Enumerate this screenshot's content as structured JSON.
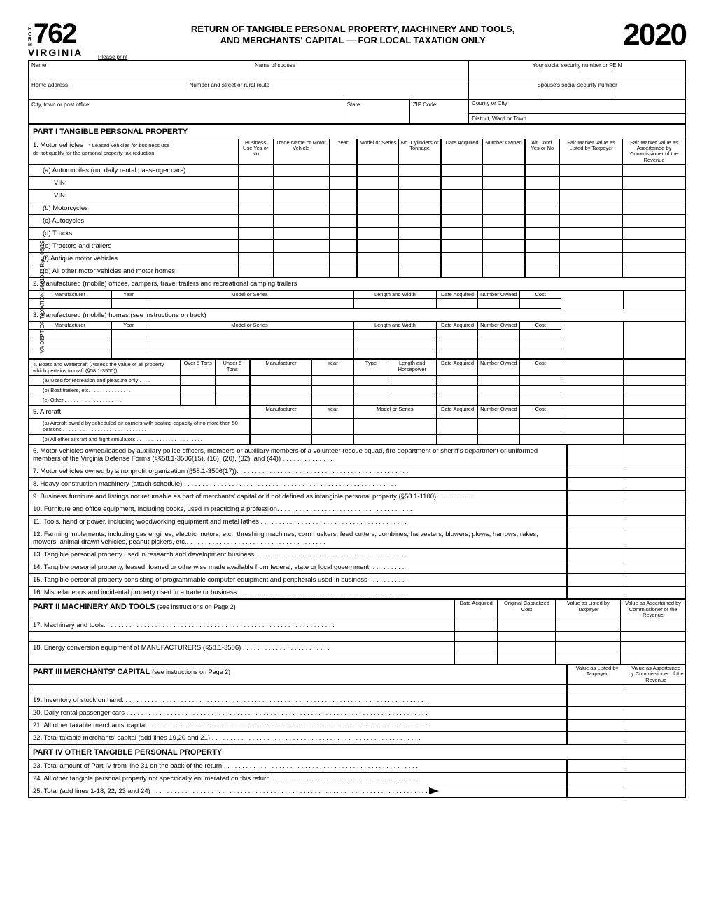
{
  "header": {
    "form_label": "FORM",
    "form_number": "762",
    "state": "VIRGINIA",
    "title_line1": "RETURN OF TANGIBLE PERSONAL PROPERTY, MACHINERY AND TOOLS,",
    "title_line2": "AND MERCHANTS' CAPITAL — FOR LOCAL TAXATION ONLY",
    "year": "2020",
    "please_print": "Please print"
  },
  "id_block": {
    "name": "Name",
    "spouse_name": "Name of spouse",
    "ssn": "Your social security number or FEIN",
    "spouse_ssn": "Spouse's social security number",
    "home_addr": "Home address",
    "street": "Number and street or rural route",
    "county": "County or City",
    "city": "City, town or post office",
    "state_lbl": "State",
    "zip": "ZIP Code",
    "district": "District, Ward or Town"
  },
  "part1": {
    "title": "PART I   TANGIBLE PERSONAL PROPERTY",
    "line1": "1. Motor vehicles",
    "line1_note1": "* Leased  vehicles for business use",
    "line1_note2": "do not qualify for the personal property tax reduction.",
    "cols": {
      "biz": "Business Use Yes or No",
      "trade": "Trade Name or Motor Vehicle",
      "year": "Year",
      "model": "Model or Series",
      "cyl": "No. Cylinders or Tonnage",
      "date": "Date Acquired",
      "num": "Number Owned",
      "ac": "Air Cond. Yes or No",
      "fmv1": "Fair Market Value as Listed by Taxpayer",
      "fmv2": "Fair Market Value as Ascertained by Commissioner of the Revenue"
    },
    "rows": {
      "a": "(a) Automobiles (not daily rental passenger cars)",
      "vin": "VIN:",
      "b": "(b) Motorcycles",
      "c": "(c) Autocycles",
      "d": "(d) Trucks",
      "e": "(e) Tractors and trailers",
      "f": "(f)  Antique motor vehicles",
      "g": "(g) All other motor vehicles and motor homes"
    },
    "line2": "2. Manufactured (mobile) offices, campers, travel trailers and recreational camping trailers",
    "sub_cols": {
      "mfr": "Manufacturer",
      "yr": "Year",
      "model": "Model or Series",
      "lw": "Length and Width",
      "date": "Date Acquired",
      "num": "Number Owned",
      "cost": "Cost"
    },
    "line3": "3. Manufactured (mobile) homes (see instructions on back)",
    "line4": {
      "label": "4.",
      "text": "Boats and Watercraft (Assess the value of all property which pertains to craft (§58.1-3500))",
      "over": "Over 5 Tons",
      "under": "Under 5 Tons",
      "mfr": "Manufacturer",
      "yr": "Year",
      "type": "Type",
      "hp": "Length and Horsepower",
      "date": "Date Acquired",
      "num": "Number Owned",
      "cost": "Cost",
      "a": "(a)   Used for recreation and pleasure only  .  .  .  .",
      "b": "(b)   Boat trailers, etc.   .  .  .  .  .  .  .  .  .  .  .  .  .  .",
      "c": "(c)   Other  .  .  .  .  .  .  .  .  .  .  .  .  .  .  .  .  .  .  .  ."
    },
    "line5": {
      "label": "5. Aircraft",
      "mfr": "Manufacturer",
      "yr": "Year",
      "model": "Model or Series",
      "date": "Date Acquired",
      "num": "Number Owned",
      "cost": "Cost",
      "a": "(a)    Aircraft owned by scheduled air carriers with seating capacity of no more than 50 persons . . . . . . . . . . . . . . . . . . . . . . . . . . . . .",
      "b": "(b)   All other aircraft and flight simulators . . . . . . . . . . . . . . . . . . . . . . ."
    },
    "lines6_16": [
      "6. Motor vehicles owned/leased by auxiliary police officers, members or auxiliary members of a volunteer rescue squad, fire department or sheriff's department or uniformed members of the Virginia Defense Forms (§§58.1-3506(15), (16), (20), (32), and (44))   .  .  .  .  .  .  .  .  .  .  .  .  .  .",
      "7. Motor vehicles owned by a nonprofit organization (§58.1-3506(17)). . . . . . . . . . . . . . . . . . . . . . . . . . . . . . . . . . . . . . . . . . . . . . .",
      "8. Heavy construction machinery (attach schedule)  . . . . . . . . . . . . . . . . . . . . . . . . . . . . . . . . . . . . . . . . . . . . . . . . . . . . . . . . . .",
      "9. Business furniture and listings not returnable as part of merchants' capital or if not defined as intangible personal property (§58.1-1100).  . . . . . . . . . .",
      "10. Furniture and office equipment, including books, used in practicing a profession. . . . . . . . . . . . . . . . . . . . . . . . . . . . . . . . . . . . .",
      "11. Tools, hand or power, including woodworking equipment and metal lathes  . . . . . . . . . . . . . . . . . . . . . . . . . . . . . . . . . . . . . . . .",
      "12. Farming implements, including gas engines, electric motors, etc., threshing machines, corn huskers, feed cutters, combines, harvesters, blowers, plows, harrows, rakes, mowers, animal drawn vehicles, peanut pickers, etc.. . . . . . . . . . . . . . . . . . . . . . . . . . . . . . . . . . . . . .",
      "13. Tangible personal property used in research and development business . . . . . . . . . . . . . . . . . . . . . . . . . . . . . . . . . . . . . . . . .",
      "14. Tangible personal property, leased, loaned or otherwise made available from federal, state or local government. . . . . . . . . . .",
      "15. Tangible personal property consisting of programmable computer equipment and peripherals used in business . . . . . . . . . . .",
      "16. Miscellaneous and incidental property used in a trade or business  . . . . . . . . . . . . . . . . . . . . . . . . . . . . . . . . . . . . . . . . . . . . . ."
    ]
  },
  "part2": {
    "title": "PART II   MACHINERY AND TOOLS",
    "note": "(see instructions on Page 2)",
    "cols": {
      "date": "Date Acquired",
      "orig": "Original Capitalized Cost",
      "val1": "Value as Listed by Taxpayer",
      "val2": "Value as Ascertained by Commissioner of the Revenue"
    },
    "l17": "17. Machinery and tools. . . . . . . . . . . . . . . . . . . . . . . . . . . . . . . . . . . . . . . . . . . . . . . . . . . . . . . . . . . . . . .",
    "l18": "18. Energy conversion equipment of MANUFACTURERS (§58.1-3506)  . . . . . . . . . . . . . . . . . . . . . . . ."
  },
  "part3": {
    "title": "PART III   MERCHANTS' CAPITAL",
    "note": "(see instructions on Page 2)",
    "cols": {
      "val1": "Value as Listed by Taxpayer",
      "val2": "Value as Ascertained by Commissioner of the Revenue"
    },
    "l19": "19. Inventory of stock on hand. . . . . . . . . . . . . . . . . . . . . . . . . . . . . . . . . . . . . . . . . . . . . . . . . . . . . . . . . . . . . . . . . . . . . . . . . . . . . . . . . . .",
    "l20": "20. Daily rental passenger cars . . . . . . . . . . . . . . . . . . . . . . . . . . . . . . . . . . . . . . . . . . . . . . . . . . . . . . . . . . . . . . . . . . . . . . . . . . . . . . . . . .",
    "l21": "21. All other taxable merchants' capital . . . . . . . . . . . . . . . . . . . . . . . . . . . . . . . . . . . . . . . . . . . . . . . . . . . . . . . . . . . . . . . . . . . . . . . . . . . .",
    "l22": "22. Total taxable merchants' capital  (add lines 19,20 and 21)  . . . . . . . . . . . . . . . . . . . . . . . . . . . . . . . . . . . . . . . . . . . . . . . . . . . . . . . . ."
  },
  "part4": {
    "title": "PART IV   OTHER TANGIBLE PERSONAL PROPERTY",
    "l23": "23. Total amount of Part IV from line 31 on the back of the return  . . . . . . . . . . . . . . . . . . . . . . . . . . . . . . . . . . . . . . . . . . . . . . . . . . . . .",
    "l24": "24. All other tangible personal property not specifically enumerated on this return  . . . . . . . . . . . . . . . . . . . . . . . . . . . . . . . . . . . . . . . .",
    "l25": "25. Total (add lines 1-18, 22, 23 and 24) . . . . . . . . . . . . . . . . . . . . . . . . . . . . . . . . . . . . . . . . . . . . . . . . . . . . . . . . . . . . . . . . . . . . . . . . . . ."
  },
  "side": "VA DEPT OF TAXATION    2601043    Rev. 06/19"
}
